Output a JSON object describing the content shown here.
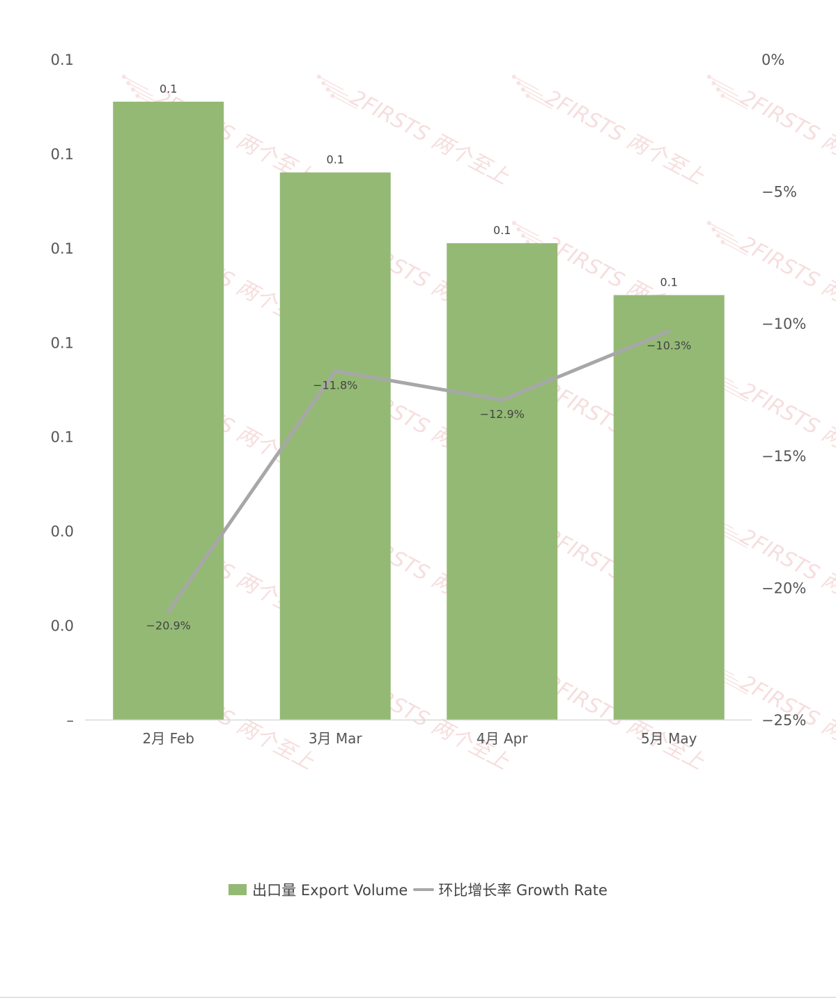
{
  "chart_data": {
    "type": "bar",
    "categories": [
      "2月 Feb",
      "3月 Mar",
      "4月 Apr",
      "5月 May"
    ],
    "series": [
      {
        "name": "出口量 Export Volume",
        "type": "bar",
        "axis": "left",
        "values": [
          0.131,
          0.116,
          0.101,
          0.09
        ],
        "labels": [
          "0.1",
          "0.1",
          "0.1",
          "0.1"
        ]
      },
      {
        "name": "环比增长率 Growth Rate",
        "type": "line",
        "axis": "right",
        "values": [
          -20.9,
          -11.8,
          -12.9,
          -10.3
        ],
        "labels": [
          "−20.9%",
          "−11.8%",
          "−12.9%",
          "−10.3%"
        ]
      }
    ],
    "y_left": {
      "ylim": [
        0,
        0.14
      ],
      "ticks": [
        "–",
        "0.0",
        "0.0",
        "0.1",
        "0.1",
        "0.1",
        "0.1",
        "0.1"
      ]
    },
    "y_right": {
      "ylim": [
        -25,
        0
      ],
      "ticks": [
        "−25%",
        "−20%",
        "−15%",
        "−10%",
        "−5%",
        "0%"
      ]
    },
    "grid": false,
    "legend": "bottom-center"
  },
  "colors": {
    "bar": "#94b975",
    "line": "#a7a7a9",
    "axis": "#d9d9d9"
  },
  "watermark": "2FIRSTS 两个至上"
}
